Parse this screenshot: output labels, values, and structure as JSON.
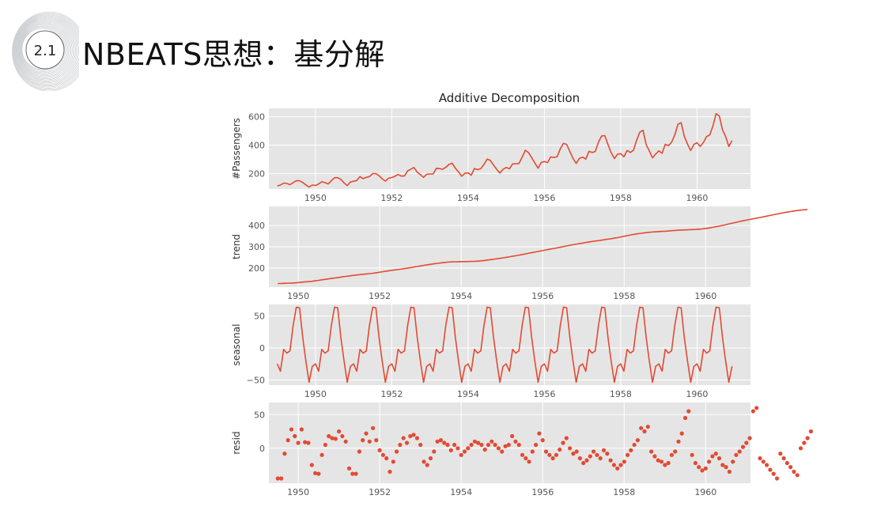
{
  "slide": {
    "number": "2.1",
    "title": "NBEATS思想：基分解"
  },
  "chart_data": {
    "type": "line",
    "title": "Additive Decomposition",
    "x_start": 1949.0,
    "x_step": 0.08333,
    "panels": [
      {
        "name": "observed",
        "ylabel": "#Passengers",
        "style": "line",
        "ylim": [
          90,
          660
        ],
        "yticks": [
          200,
          400,
          600
        ],
        "xticks": [
          1950,
          1952,
          1954,
          1956,
          1958,
          1960
        ],
        "values": [
          112,
          118,
          132,
          129,
          121,
          135,
          148,
          148,
          136,
          119,
          104,
          118,
          115,
          126,
          141,
          135,
          125,
          149,
          170,
          170,
          158,
          133,
          114,
          140,
          145,
          150,
          178,
          163,
          172,
          178,
          199,
          199,
          184,
          162,
          146,
          166,
          171,
          180,
          193,
          181,
          183,
          218,
          230,
          242,
          209,
          191,
          172,
          194,
          196,
          196,
          236,
          235,
          229,
          243,
          264,
          272,
          237,
          211,
          180,
          201,
          204,
          188,
          235,
          227,
          234,
          264,
          302,
          293,
          259,
          229,
          203,
          229,
          242,
          233,
          267,
          269,
          270,
          315,
          364,
          347,
          312,
          274,
          237,
          278,
          284,
          277,
          317,
          313,
          318,
          374,
          413,
          405,
          355,
          306,
          271,
          306,
          315,
          301,
          356,
          348,
          355,
          422,
          465,
          467,
          404,
          347,
          305,
          336,
          340,
          318,
          362,
          348,
          363,
          435,
          491,
          505,
          404,
          359,
          310,
          337,
          360,
          342,
          406,
          396,
          420,
          472,
          548,
          559,
          463,
          407,
          362,
          405,
          417,
          391,
          419,
          461,
          472,
          535,
          622,
          606,
          508,
          461,
          390,
          432
        ]
      },
      {
        "name": "trend",
        "ylabel": "trend",
        "style": "line",
        "ylim": [
          110,
          490
        ],
        "yticks": [
          200,
          300,
          400
        ],
        "xticks": [
          1950,
          1952,
          1954,
          1956,
          1958,
          1960
        ],
        "x_start": 1949.5,
        "values": [
          126.8,
          127.2,
          127.9,
          128.6,
          129.0,
          129.8,
          131.2,
          133.1,
          134.5,
          135.8,
          137.3,
          139.3,
          141.8,
          144.2,
          146.5,
          148.9,
          151.2,
          153.4,
          155.6,
          157.9,
          160.2,
          162.4,
          164.6,
          166.7,
          168.6,
          170.3,
          171.8,
          173.3,
          175.3,
          177.5,
          180.0,
          182.7,
          185.3,
          187.6,
          189.8,
          191.9,
          194.0,
          196.3,
          198.6,
          201.2,
          204.1,
          206.9,
          209.6,
          212.3,
          214.8,
          217.3,
          219.7,
          221.9,
          224.0,
          225.9,
          227.4,
          228.5,
          229.3,
          229.6,
          229.8,
          230.0,
          230.4,
          231.0,
          231.6,
          232.3,
          233.7,
          235.6,
          237.8,
          240.0,
          242.2,
          244.4,
          246.7,
          249.3,
          252.0,
          254.8,
          257.6,
          260.5,
          263.5,
          266.6,
          269.7,
          272.8,
          275.8,
          278.8,
          281.9,
          285.0,
          288.1,
          291.1,
          294.1,
          297.2,
          300.4,
          303.6,
          306.8,
          309.7,
          312.5,
          315.3,
          318.0,
          320.7,
          323.3,
          325.8,
          328.1,
          330.3,
          332.6,
          335.0,
          337.4,
          340.1,
          343.0,
          346.2,
          349.4,
          352.6,
          355.7,
          358.6,
          361.2,
          363.5,
          365.5,
          367.3,
          368.8,
          370.0,
          371.1,
          372.1,
          373.2,
          374.3,
          375.5,
          376.7,
          377.8,
          378.6,
          379.3,
          380.0,
          380.7,
          381.6,
          382.6,
          384.0,
          385.9,
          388.3,
          391.1,
          394.1,
          397.3,
          400.7,
          404.3,
          408.0,
          411.7,
          415.3,
          418.8,
          422.1,
          425.3,
          428.5,
          431.6,
          434.7,
          437.8,
          441.0,
          444.3,
          447.6,
          450.9,
          454.2,
          457.4,
          460.5,
          463.3,
          465.9,
          468.3,
          470.5,
          472.4,
          474.1,
          475.5
        ]
      },
      {
        "name": "seasonal",
        "ylabel": "seasonal",
        "style": "line",
        "ylim": [
          -58,
          68
        ],
        "yticks": [
          -50,
          0,
          50
        ],
        "xticks": [
          1950,
          1952,
          1954,
          1956,
          1958,
          1960
        ],
        "pattern": [
          -24.8,
          -36.2,
          -2.2,
          -8.0,
          -4.5,
          35.4,
          63.8,
          62.8,
          16.5,
          -20.6,
          -53.6,
          -28.6
        ],
        "repeat": 12
      },
      {
        "name": "resid",
        "ylabel": "resid",
        "style": "scatter",
        "ylim": [
          -52,
          68
        ],
        "yticks": [
          0,
          50
        ],
        "xticks": [
          1950,
          1952,
          1954,
          1956,
          1958,
          1960
        ],
        "x_start": 1949.5,
        "values": [
          -45,
          -45,
          -8,
          12,
          28,
          18,
          8,
          28,
          9,
          8,
          -25,
          -37,
          -38,
          -10,
          5,
          18,
          15,
          14,
          25,
          18,
          10,
          -30,
          -38,
          -38,
          -5,
          12,
          22,
          10,
          30,
          12,
          -3,
          -10,
          -15,
          -35,
          -20,
          -5,
          5,
          15,
          8,
          18,
          20,
          15,
          5,
          -20,
          -25,
          -15,
          -5,
          10,
          12,
          8,
          5,
          -3,
          5,
          0,
          -10,
          -5,
          0,
          5,
          10,
          8,
          5,
          -2,
          5,
          10,
          5,
          0,
          -5,
          3,
          5,
          18,
          10,
          5,
          -10,
          -15,
          -20,
          -5,
          5,
          22,
          12,
          -5,
          -10,
          -15,
          -10,
          -2,
          8,
          15,
          0,
          -8,
          -5,
          -15,
          -22,
          -18,
          -12,
          -5,
          -10,
          -15,
          -3,
          -8,
          -18,
          -25,
          -30,
          -25,
          -20,
          -10,
          -3,
          5,
          12,
          30,
          25,
          32,
          -5,
          -12,
          -18,
          -20,
          -25,
          -22,
          -10,
          -5,
          10,
          22,
          45,
          55,
          -10,
          -22,
          -28,
          -33,
          -30,
          -20,
          -12,
          -8,
          -15,
          -25,
          -28,
          -35,
          -20,
          -10,
          -5,
          2,
          8,
          15,
          55,
          60,
          -15,
          -20,
          -25,
          -32,
          -38,
          -45,
          -8,
          -15,
          -22,
          -28,
          -35,
          -40,
          0,
          8,
          15,
          25
        ]
      }
    ]
  }
}
